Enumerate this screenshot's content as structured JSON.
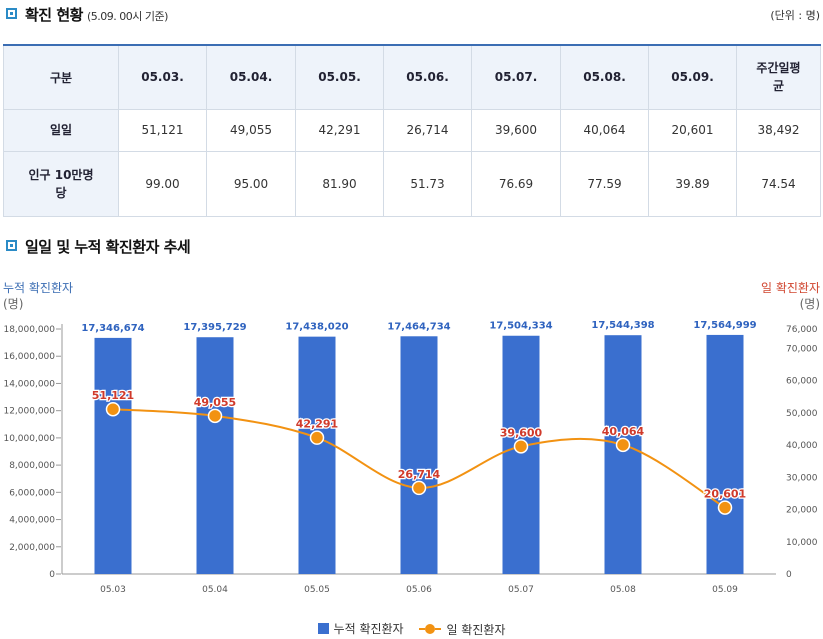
{
  "status": {
    "title": "확진 현황",
    "subtitle": "(5.09. 00시 기준)",
    "unit": "(단위 : 명)",
    "table": {
      "corner": "구분",
      "dates": [
        "05.03.",
        "05.04.",
        "05.05.",
        "05.06.",
        "05.07.",
        "05.08.",
        "05.09."
      ],
      "weekly_line1": "주간일평",
      "weekly_line2": "균",
      "daily_label": "일일",
      "daily": [
        "51,121",
        "49,055",
        "42,291",
        "26,714",
        "39,600",
        "40,064",
        "20,601"
      ],
      "daily_avg": "38,492",
      "per100k_line1": "인구 10만명",
      "per100k_line2": "당",
      "per100k": [
        "99.00",
        "95.00",
        "81.90",
        "51.73",
        "76.69",
        "77.59",
        "39.89"
      ],
      "per100k_avg": "74.54"
    }
  },
  "trend": {
    "title": "일일 및 누적 확진환자 추세"
  },
  "chart_data": {
    "type": "bar+line",
    "title": "일일 및 누적 확진환자 추세",
    "categories": [
      "05.03",
      "05.04",
      "05.05",
      "05.06",
      "05.07",
      "05.08",
      "05.09"
    ],
    "left_axis_title": "누적 확진환자",
    "right_axis_title": "일 확진환자",
    "axis_unit": "(명)",
    "left_ticks": [
      "0",
      "2,000,000",
      "4,000,000",
      "6,000,000",
      "8,000,000",
      "10,000,000",
      "12,000,000",
      "14,000,000",
      "16,000,000",
      "18,000,000"
    ],
    "right_ticks": [
      "0",
      "10,000",
      "20,000",
      "30,000",
      "40,000",
      "50,000",
      "60,000",
      "70,000",
      "76,000"
    ],
    "left_range": [
      0,
      18000000
    ],
    "right_range": [
      0,
      76000
    ],
    "series": [
      {
        "name": "누적 확진환자",
        "axis": "left",
        "kind": "bar",
        "color": "#3a6fcf",
        "label_color": "#2f63bf",
        "values": [
          17346674,
          17395729,
          17438020,
          17464734,
          17504334,
          17544398,
          17564999
        ],
        "labels": [
          "17,346,674",
          "17,395,729",
          "17,438,020",
          "17,464,734",
          "17,504,334",
          "17,544,398",
          "17,564,999"
        ]
      },
      {
        "name": "일 확진환자",
        "axis": "right",
        "kind": "line",
        "color": "#f29212",
        "label_color": "#d03a2b",
        "values": [
          51121,
          49055,
          42291,
          26714,
          39600,
          40064,
          20601
        ],
        "labels": [
          "51,121",
          "49,055",
          "42,291",
          "26,714",
          "39,600",
          "40,064",
          "20,601"
        ]
      }
    ],
    "legend": [
      "누적 확진환자",
      "일 확진환자"
    ]
  }
}
